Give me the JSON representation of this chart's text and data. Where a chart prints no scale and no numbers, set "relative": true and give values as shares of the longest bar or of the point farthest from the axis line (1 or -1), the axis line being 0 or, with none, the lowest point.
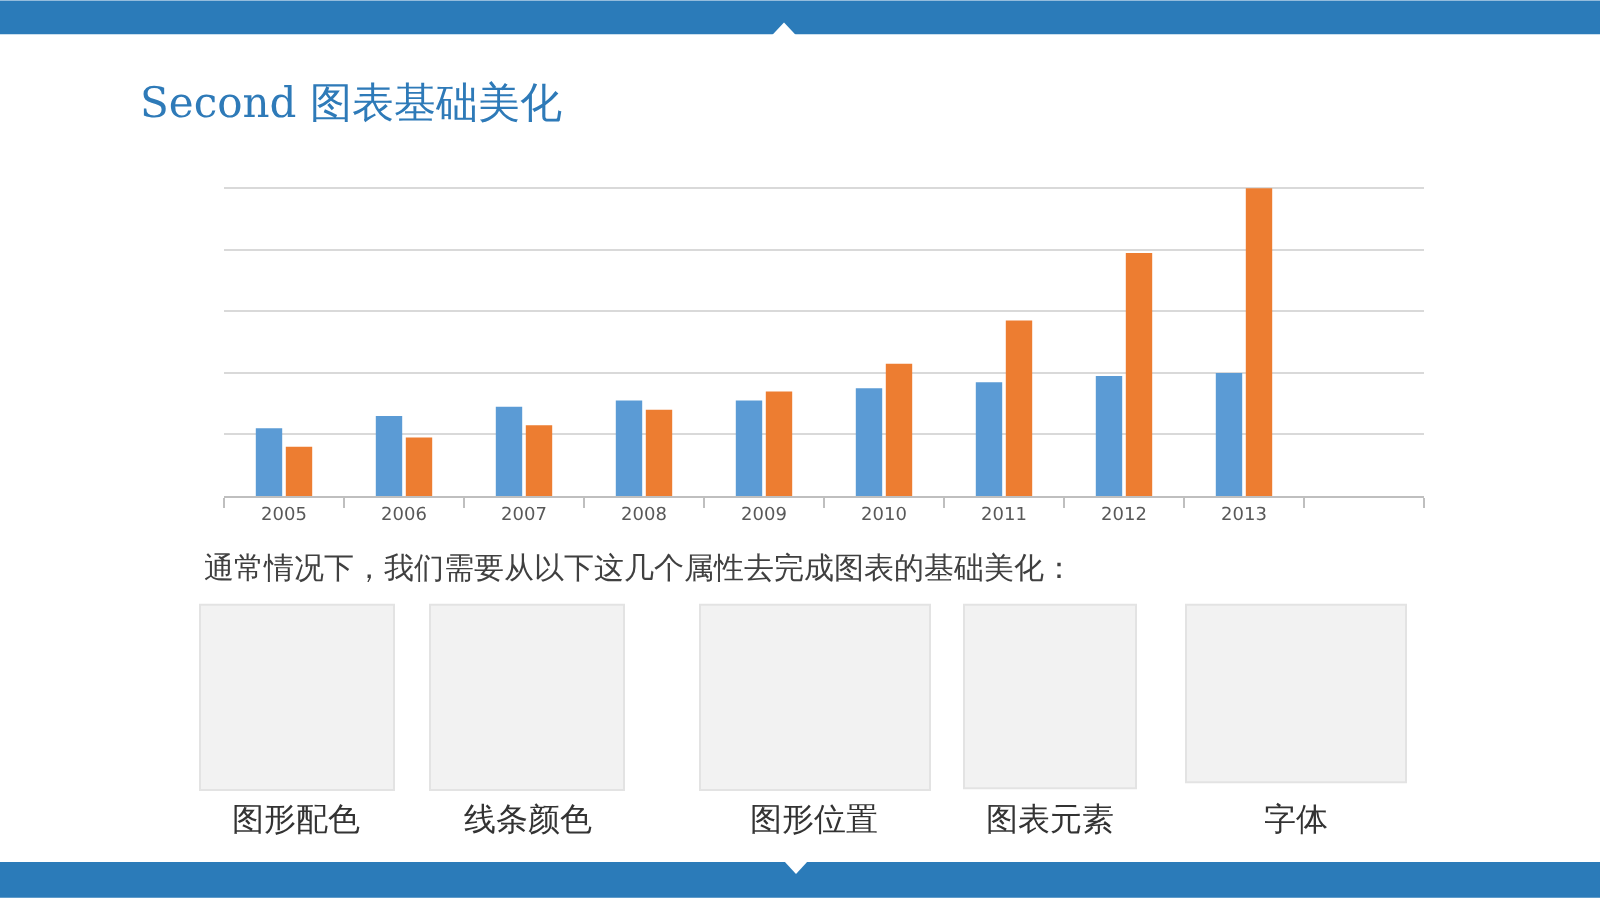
{
  "chart_data": {
    "type": "bar",
    "title": "Second 图表基础美化",
    "categories": [
      "2005",
      "2006",
      "2007",
      "2008",
      "2009",
      "2010",
      "2011",
      "2012",
      "2013",
      null
    ],
    "series": [
      {
        "color": "#5b9bd5",
        "values": [
          0.22,
          0.26,
          0.29,
          0.31,
          0.31,
          0.35,
          0.37,
          0.39,
          0.4,
          null
        ]
      },
      {
        "color": "#ed7d31",
        "values": [
          0.16,
          0.19,
          0.23,
          0.28,
          0.34,
          0.43,
          0.57,
          0.79,
          1,
          null
        ]
      }
    ],
    "relative": true,
    "grid": "y",
    "annotations": [
      "通常情况下，我们需要从以下这几个属性去完成图表的基础美化：",
      "图形配色",
      "线条颜色",
      "图形位置",
      "图表元素",
      "字体"
    ]
  }
}
